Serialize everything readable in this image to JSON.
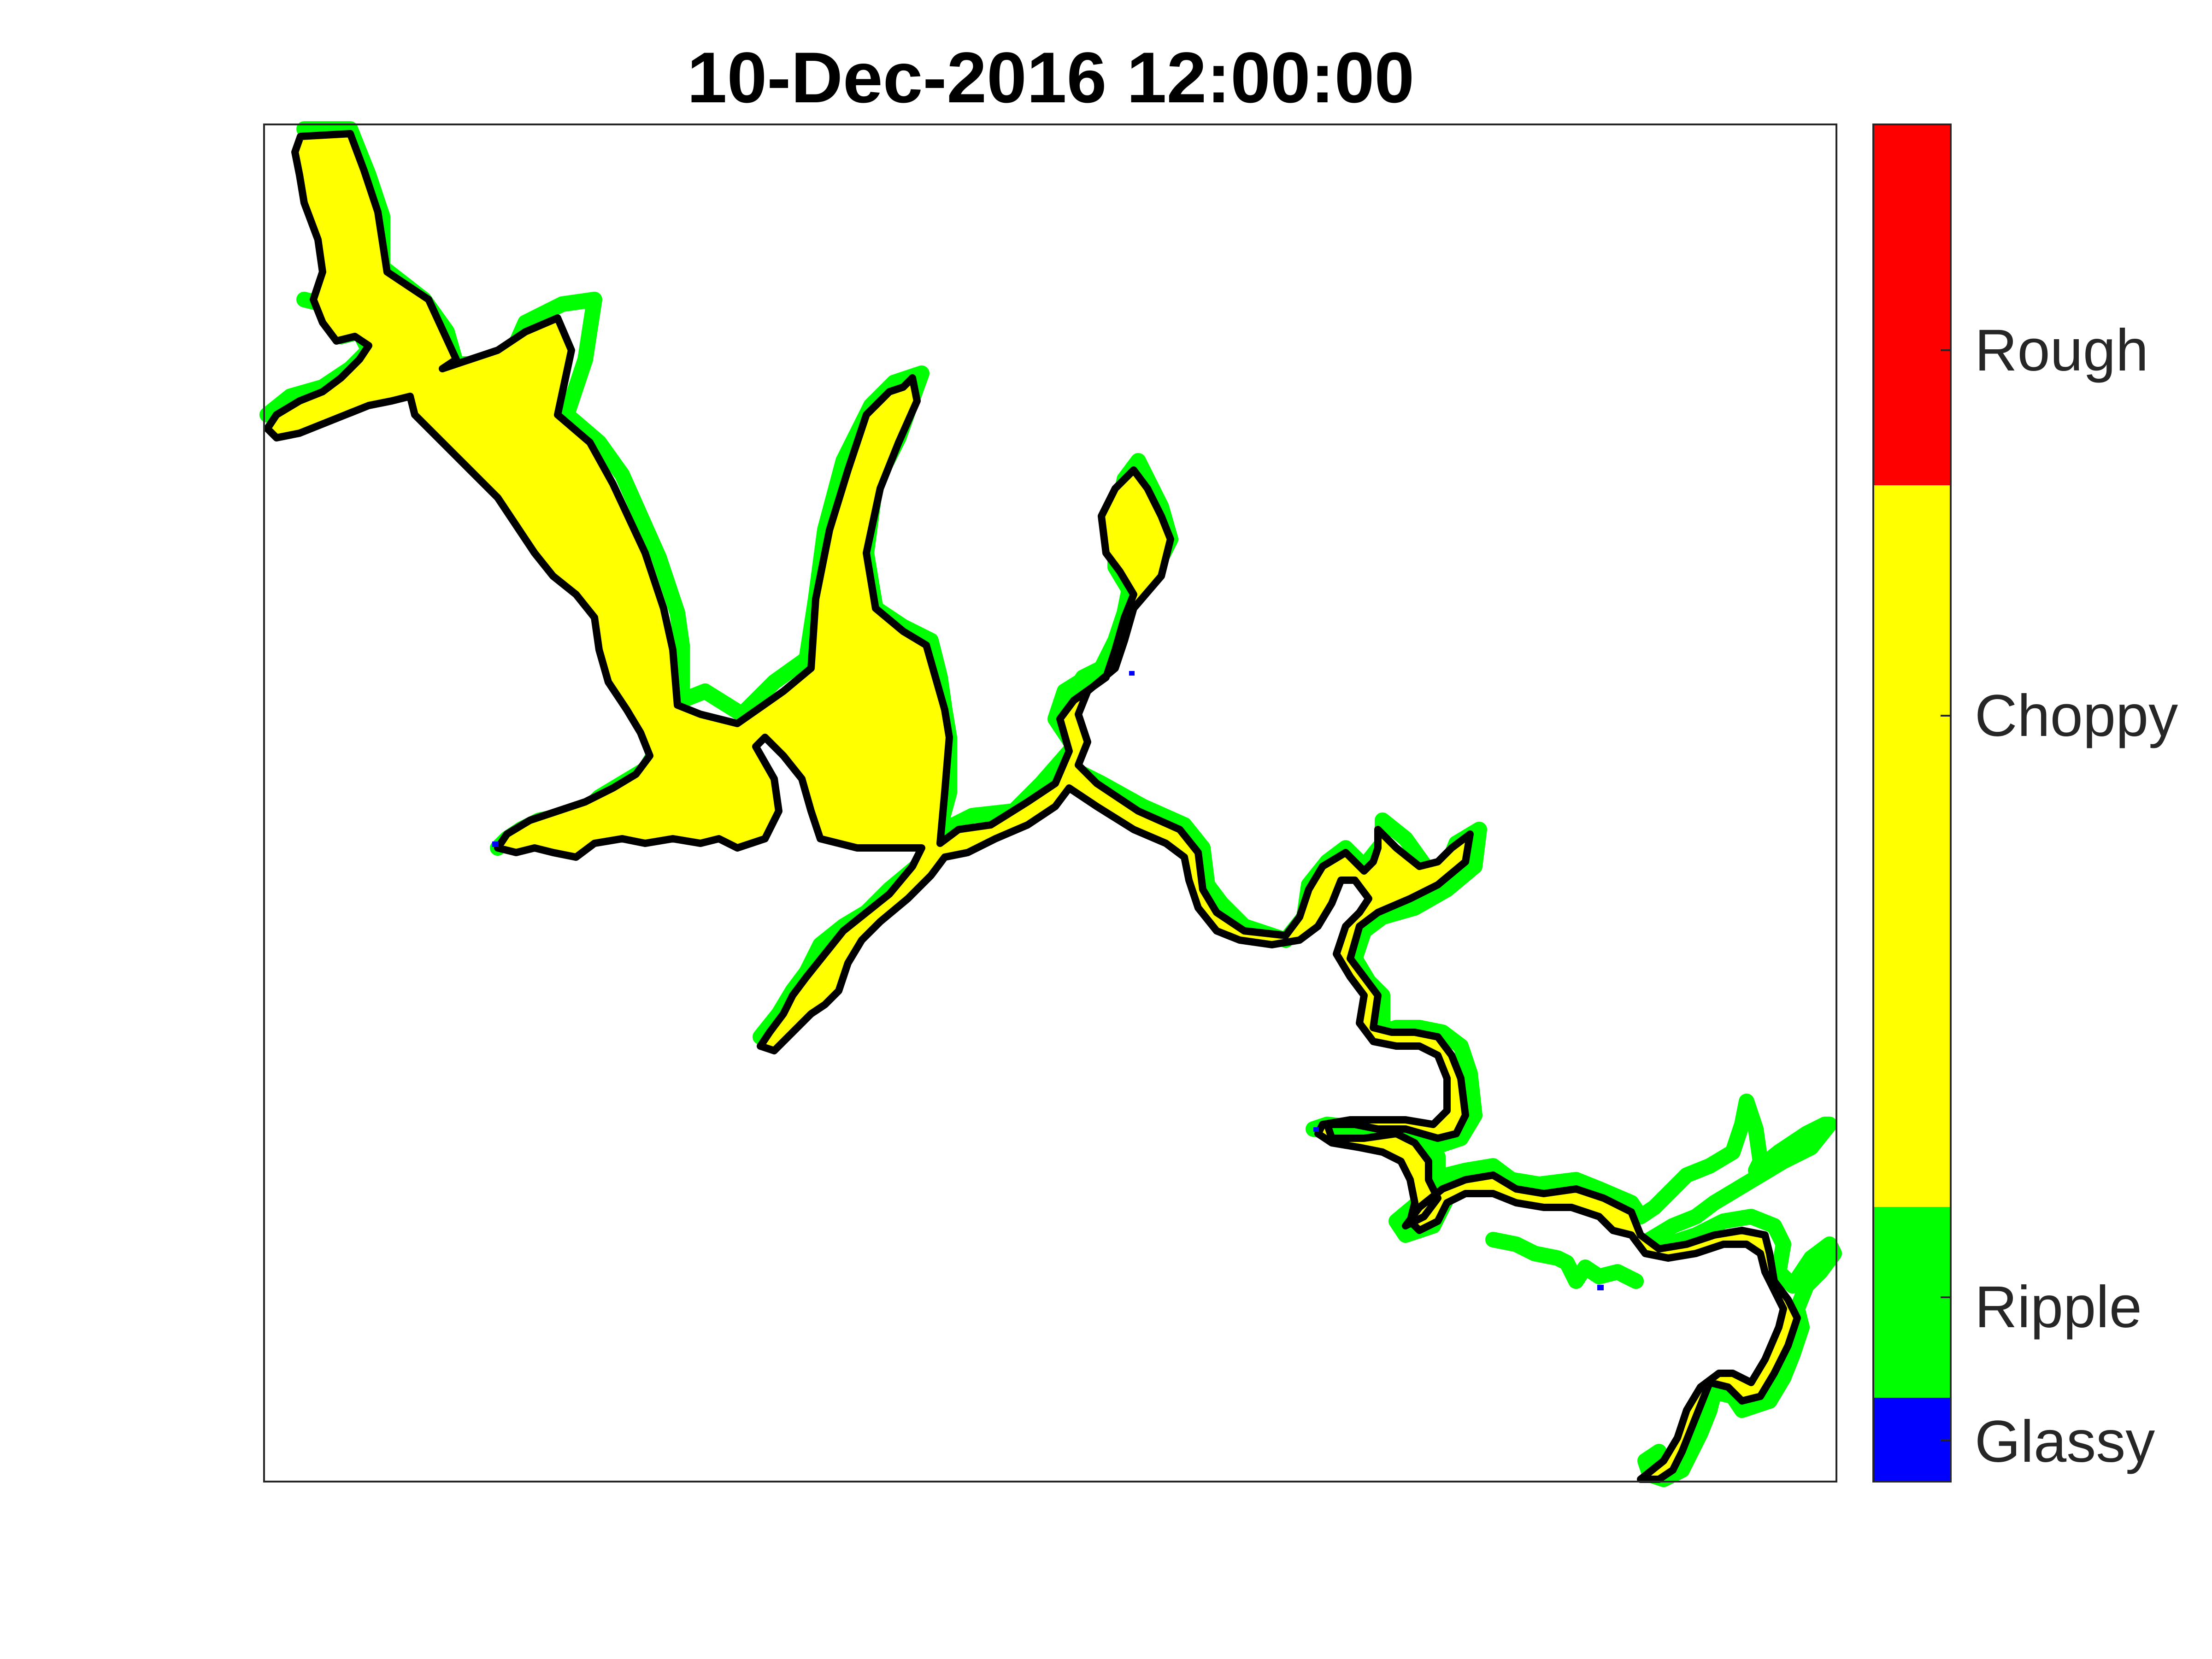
{
  "title": "10-Dec-2016 12:00:00",
  "map": {
    "background_color": "#ffffff",
    "frame_color": "#262626",
    "water_fill_color": "#ffff00",
    "shore_fringe_color": "#00ff00",
    "shore_outline_color": "#000000",
    "dominant_class": "Choppy",
    "fringe_class": "Ripple"
  },
  "colorbar": {
    "categories": [
      {
        "label": "Glassy",
        "color": "#0000ff"
      },
      {
        "label": "Ripple",
        "color": "#00ff00"
      },
      {
        "label": "Choppy",
        "color": "#ffff00"
      },
      {
        "label": "Rough",
        "color": "#ff0000"
      }
    ]
  }
}
